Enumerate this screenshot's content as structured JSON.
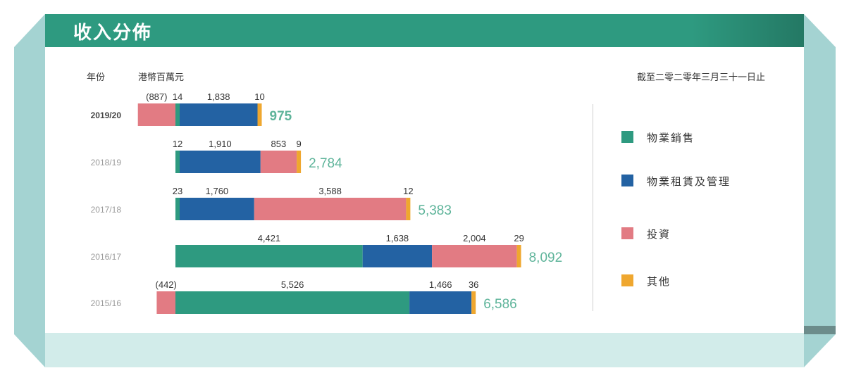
{
  "title": "收入分佈",
  "header": {
    "year_label": "年份",
    "unit_label": "港幣百萬元",
    "date_note": "截至二零二零年三月三十一日止"
  },
  "colors": {
    "title_bar": "#2e9a80",
    "frame": "#a4d3d2",
    "total_text": "#5eb49a"
  },
  "legend": [
    {
      "label": "物業銷售",
      "color": "#2e9a80"
    },
    {
      "label": "物業租賃及管理",
      "color": "#2362a3"
    },
    {
      "label": "投資",
      "color": "#e27b83"
    },
    {
      "label": "其他",
      "color": "#efa72f"
    }
  ],
  "chart_data": {
    "type": "bar",
    "orientation": "horizontal",
    "stacked": true,
    "unit": "港幣百萬元",
    "categories": [
      "2019/20",
      "2018/19",
      "2017/18",
      "2016/17",
      "2015/16"
    ],
    "series": [
      {
        "name": "物業銷售",
        "values": [
          14,
          12,
          23,
          4421,
          5526
        ],
        "labels": [
          "14",
          "12",
          "23",
          "4,421",
          "5,526"
        ]
      },
      {
        "name": "物業租賃及管理",
        "values": [
          1838,
          1910,
          1760,
          1638,
          1466
        ],
        "labels": [
          "1,838",
          "1,910",
          "1,760",
          "1,638",
          "1,466"
        ]
      },
      {
        "name": "投資",
        "values": [
          -887,
          853,
          3588,
          2004,
          -442
        ],
        "labels": [
          "(887)",
          "853",
          "3,588",
          "2,004",
          "(442)"
        ]
      },
      {
        "name": "其他",
        "values": [
          10,
          9,
          12,
          29,
          36
        ],
        "labels": [
          "10",
          "9",
          "12",
          "29",
          "36"
        ]
      }
    ],
    "totals": [
      975,
      2784,
      5383,
      8092,
      6586
    ],
    "total_labels": [
      "975",
      "2,784",
      "5,383",
      "8,092",
      "6,586"
    ]
  }
}
